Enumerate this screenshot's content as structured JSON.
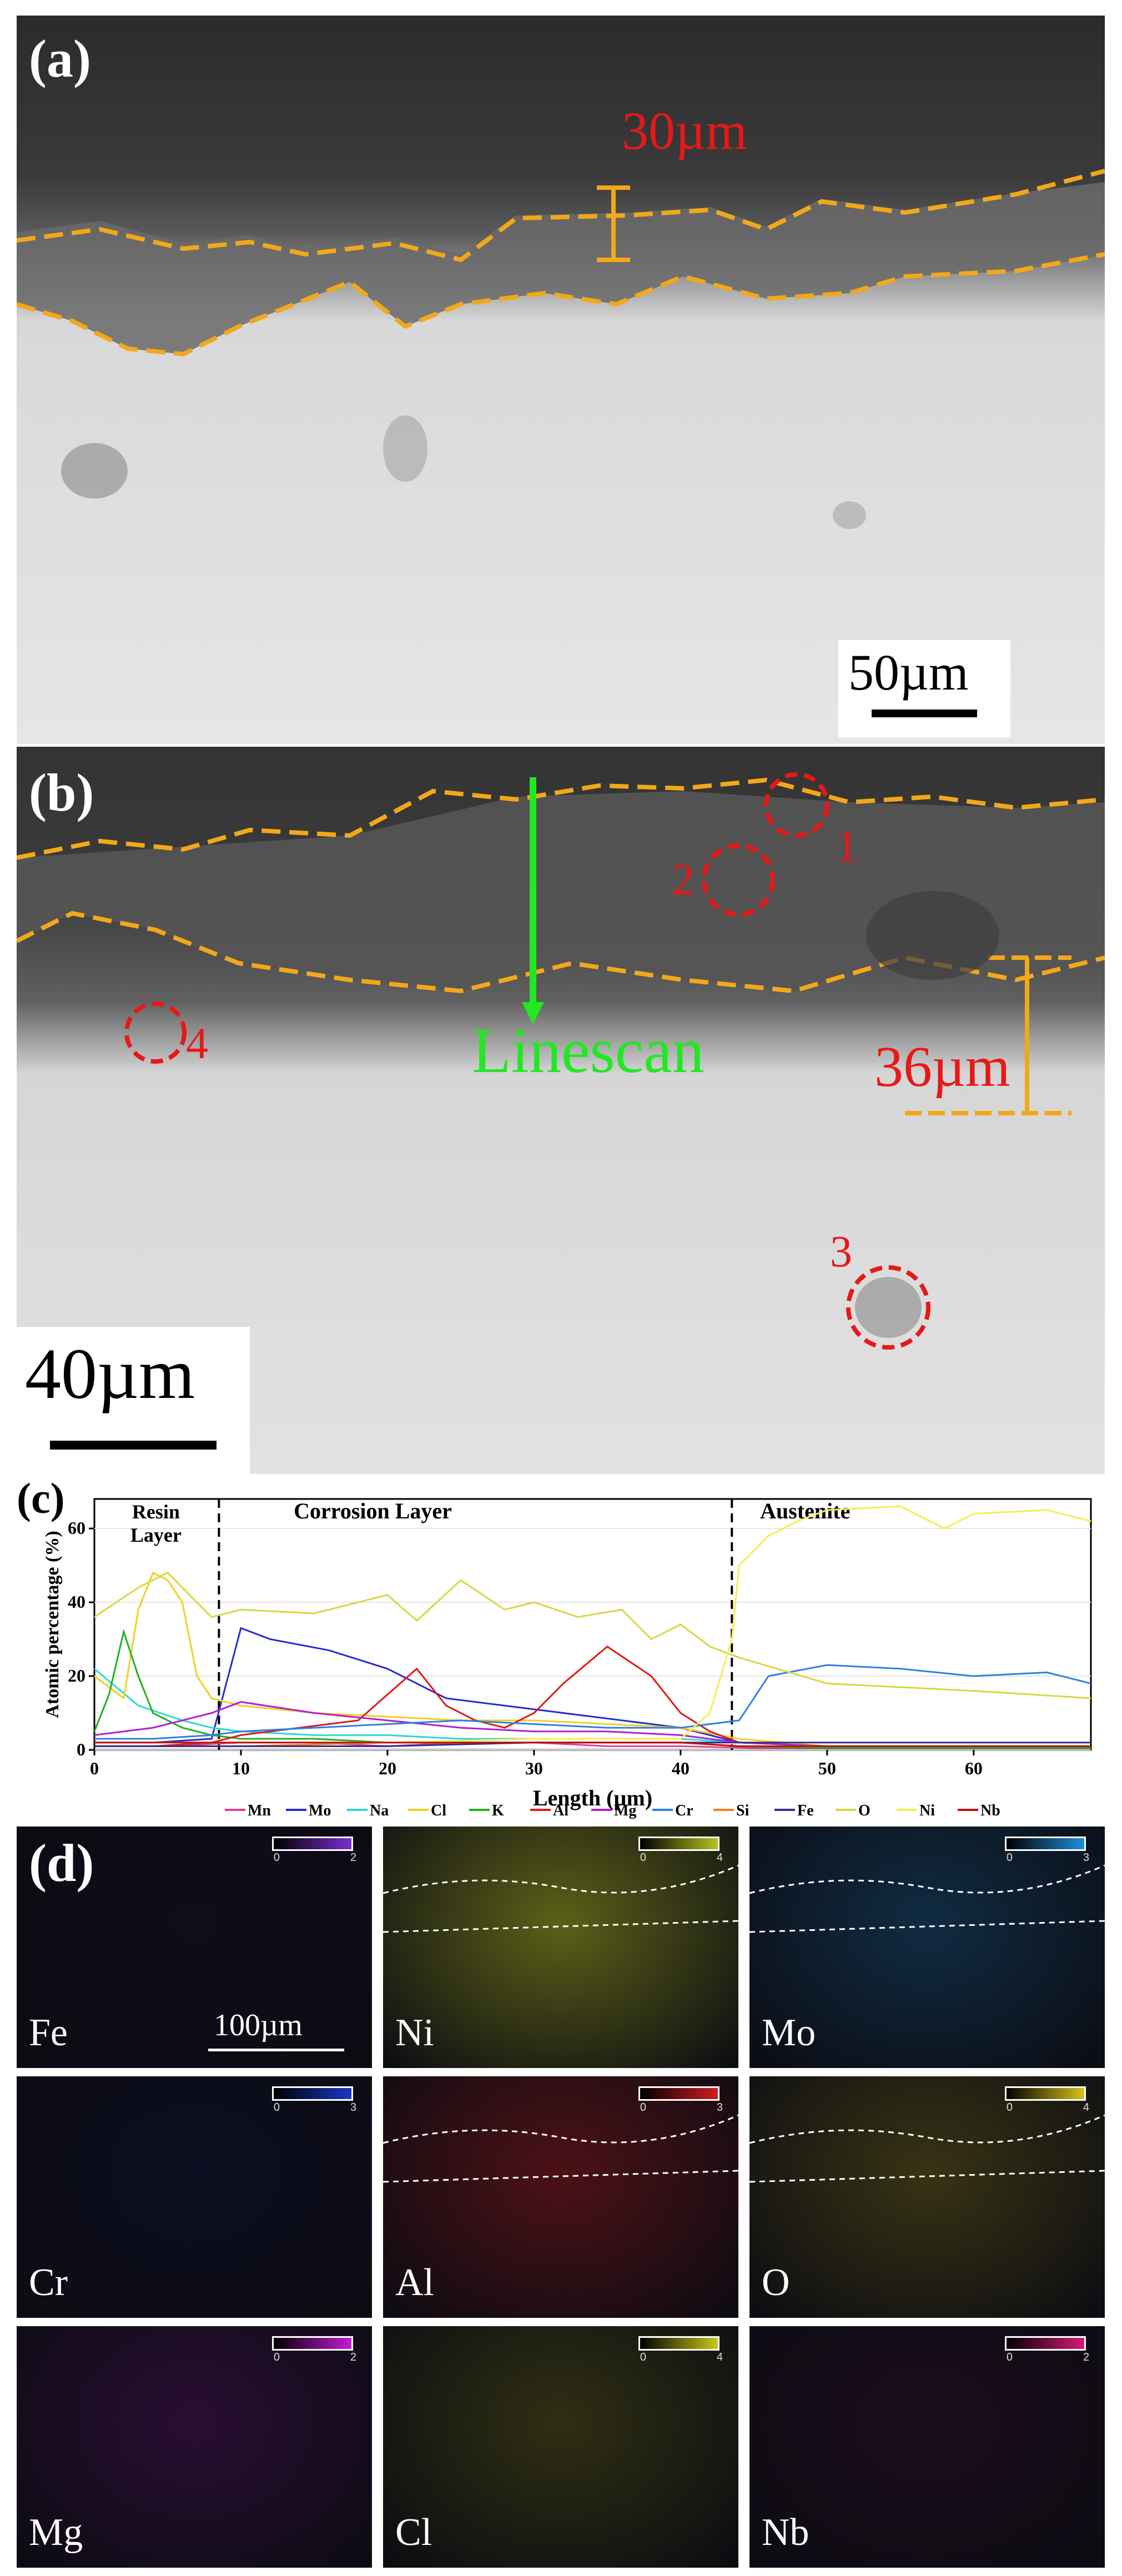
{
  "panels": {
    "a": {
      "label": "(a)",
      "thickness_label": "30µm",
      "scale_bar": "50µm"
    },
    "b": {
      "label": "(b)",
      "thickness_label": "36µm",
      "scale_bar": "40µm",
      "linescan_label": "Linescan",
      "points": [
        "1",
        "2",
        "3",
        "4"
      ]
    },
    "c": {
      "label": "(c)",
      "regions": [
        "Resin\nLayer",
        "Corrosion Layer",
        "Austenite"
      ]
    },
    "d": {
      "label": "(d)",
      "scale_bar": "100µm",
      "maps": [
        {
          "element": "Fe",
          "color": "#7a2fd0",
          "cbar_max": "2",
          "intensity": 0.08
        },
        {
          "element": "Ni",
          "color": "#b7c21d",
          "cbar_max": "4",
          "intensity": 0.85
        },
        {
          "element": "Mo",
          "color": "#1d8fd6",
          "cbar_max": "3",
          "intensity": 0.45
        },
        {
          "element": "Cr",
          "color": "#1a37c8",
          "cbar_max": "3",
          "intensity": 0.15
        },
        {
          "element": "Al",
          "color": "#d21d1d",
          "cbar_max": "3",
          "intensity": 0.6
        },
        {
          "element": "O",
          "color": "#d8c21a",
          "cbar_max": "4",
          "intensity": 0.4
        },
        {
          "element": "Mg",
          "color": "#c51ad8",
          "cbar_max": "2",
          "intensity": 0.3
        },
        {
          "element": "Cl",
          "color": "#c8c81a",
          "cbar_max": "4",
          "intensity": 0.35
        },
        {
          "element": "Nb",
          "color": "#d81a7a",
          "cbar_max": "2",
          "intensity": 0.15
        }
      ],
      "cbar_min": "0"
    }
  },
  "chart_data": {
    "type": "line",
    "xlabel": "Length (µm)",
    "ylabel": "Atomic percentage (%)",
    "xlim": [
      0,
      68
    ],
    "ylim": [
      0,
      68
    ],
    "xticks": [
      0,
      10,
      20,
      30,
      40,
      50,
      60
    ],
    "yticks": [
      0,
      20,
      40,
      60
    ],
    "boundaries": [
      8.5,
      43.5
    ],
    "series": [
      {
        "name": "Mn",
        "color": "#e0409a",
        "x": [
          0,
          5,
          10,
          15,
          20,
          25,
          30,
          35,
          40,
          45,
          50,
          55,
          60,
          65,
          68
        ],
        "y": [
          1,
          1,
          2,
          2,
          1,
          2,
          2,
          1,
          1,
          0.5,
          0.5,
          0.5,
          0.5,
          0.5,
          0.5
        ]
      },
      {
        "name": "Mo",
        "color": "#2a2ad0",
        "x": [
          0,
          4,
          8,
          10,
          12,
          16,
          20,
          24,
          28,
          32,
          36,
          40,
          44,
          50,
          60,
          68
        ],
        "y": [
          2,
          2,
          3,
          33,
          30,
          27,
          22,
          14,
          12,
          10,
          8,
          6,
          2,
          1,
          1,
          1
        ]
      },
      {
        "name": "Na",
        "color": "#30d8d8",
        "x": [
          0,
          3,
          6,
          8,
          10,
          15,
          20,
          25,
          30,
          35,
          40,
          44,
          50,
          60,
          68
        ],
        "y": [
          22,
          12,
          8,
          6,
          5,
          4,
          4,
          3,
          3,
          3,
          3,
          2,
          1,
          1,
          1
        ]
      },
      {
        "name": "Cl",
        "color": "#f0d020",
        "x": [
          0,
          2,
          3,
          4,
          5,
          6,
          7,
          8,
          10,
          15,
          20,
          25,
          30,
          35,
          40,
          44,
          50,
          60,
          68
        ],
        "y": [
          20,
          14,
          38,
          48,
          46,
          40,
          20,
          14,
          12,
          10,
          9,
          8,
          8,
          7,
          6,
          3,
          1,
          1,
          1
        ]
      },
      {
        "name": "K",
        "color": "#20b020",
        "x": [
          0,
          1,
          2,
          3,
          4,
          6,
          8,
          10,
          15,
          20,
          25,
          30,
          35,
          40,
          44,
          50,
          60,
          68
        ],
        "y": [
          5,
          15,
          32,
          20,
          10,
          6,
          4,
          3,
          3,
          2,
          2,
          2,
          2,
          2,
          1,
          0.5,
          0.5,
          0.5
        ]
      },
      {
        "name": "Al",
        "color": "#e01818",
        "x": [
          0,
          4,
          8,
          10,
          14,
          18,
          22,
          24,
          26,
          28,
          30,
          32,
          35,
          38,
          40,
          42,
          44,
          50,
          60,
          68
        ],
        "y": [
          1,
          1,
          2,
          4,
          6,
          8,
          22,
          12,
          8,
          6,
          10,
          18,
          28,
          20,
          10,
          5,
          2,
          1,
          1,
          1
        ]
      },
      {
        "name": "Mg",
        "color": "#b020d0",
        "x": [
          0,
          4,
          8,
          10,
          15,
          20,
          25,
          30,
          35,
          40,
          44,
          50,
          60,
          68
        ],
        "y": [
          4,
          6,
          10,
          13,
          10,
          8,
          6,
          5,
          5,
          4,
          2,
          1,
          1,
          1
        ]
      },
      {
        "name": "Cr",
        "color": "#3080e0",
        "x": [
          0,
          4,
          8,
          10,
          15,
          20,
          25,
          30,
          35,
          40,
          44,
          46,
          50,
          55,
          60,
          65,
          68
        ],
        "y": [
          3,
          3,
          4,
          5,
          6,
          7,
          8,
          7,
          6,
          6,
          8,
          20,
          23,
          22,
          20,
          21,
          18
        ]
      },
      {
        "name": "Si",
        "color": "#f08020",
        "x": [
          0,
          10,
          20,
          30,
          40,
          44,
          50,
          60,
          68
        ],
        "y": [
          1,
          1,
          2,
          2,
          2,
          1,
          1,
          1,
          1
        ]
      },
      {
        "name": "Fe",
        "color": "#303090",
        "x": [
          0,
          10,
          20,
          30,
          40,
          44,
          50,
          60,
          68
        ],
        "y": [
          1,
          1,
          1,
          2,
          2,
          2,
          2,
          2,
          2
        ]
      },
      {
        "name": "O",
        "color": "#d8d840",
        "x": [
          0,
          3,
          5,
          8,
          10,
          15,
          20,
          22,
          25,
          28,
          30,
          33,
          36,
          38,
          40,
          42,
          44,
          50,
          60,
          68
        ],
        "y": [
          36,
          44,
          48,
          36,
          38,
          37,
          42,
          35,
          46,
          38,
          40,
          36,
          38,
          30,
          34,
          28,
          25,
          18,
          16,
          14
        ]
      },
      {
        "name": "Ni",
        "color": "#f0f050",
        "x": [
          0,
          5,
          8,
          10,
          20,
          30,
          40,
          42,
          43.5,
          44,
          46,
          48,
          50,
          55,
          58,
          60,
          65,
          68
        ],
        "y": [
          2,
          2,
          2,
          2,
          2,
          3,
          3,
          10,
          30,
          50,
          58,
          62,
          65,
          66,
          60,
          64,
          65,
          62
        ]
      },
      {
        "name": "Nb",
        "color": "#c01010",
        "x": [
          0,
          10,
          20,
          30,
          40,
          44,
          50,
          60,
          68
        ],
        "y": [
          2,
          2,
          2,
          2,
          2,
          1,
          1,
          1,
          1
        ]
      }
    ]
  }
}
